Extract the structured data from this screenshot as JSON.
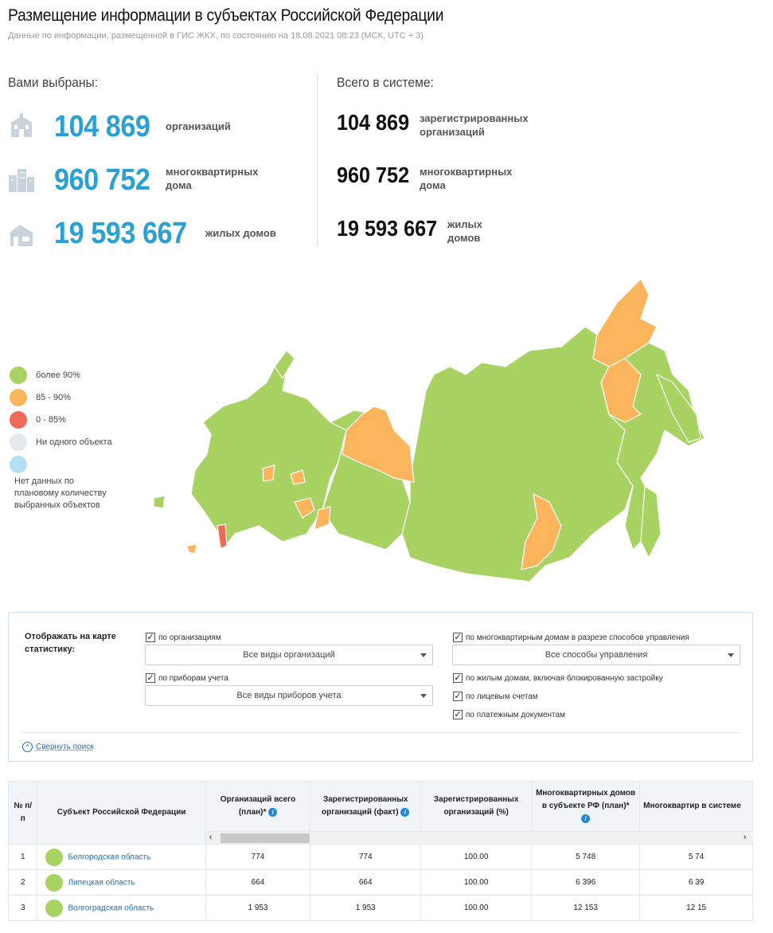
{
  "header": {
    "title": "Размещение информации в субъектах Российской Федерации",
    "subtitle": "Данные по информации, размещенной в ГИС ЖКХ, по состоянию на 18.08.2021 08:23 (МСК, UTC + 3)"
  },
  "selected": {
    "heading": "Вами выбраны:",
    "items": [
      {
        "icon": "organization-building-icon",
        "value": "104 869",
        "label": "организаций"
      },
      {
        "icon": "apartment-buildings-icon",
        "value": "960 752",
        "label": "многоквартирных дома"
      },
      {
        "icon": "house-icon",
        "value": "19 593 667",
        "label": "жилых домов"
      }
    ]
  },
  "total": {
    "heading": "Всего в системе:",
    "items": [
      {
        "value": "104 869",
        "label": "зарегистрированных организаций"
      },
      {
        "value": "960 752",
        "label": "многоквартирных дома"
      },
      {
        "value": "19 593 667",
        "label": "жилых домов"
      }
    ]
  },
  "legend": [
    {
      "label": "более 90%",
      "color": "#a8d262"
    },
    {
      "label": "85 - 90%",
      "color": "#fbb55c"
    },
    {
      "label": "0 - 85%",
      "color": "#f06a5a"
    },
    {
      "label": "Ни одного объекта",
      "color": "#e4e9ee"
    },
    {
      "label": "Нет данных по плановому количеству выбранных объектов",
      "color": "#b3e0f2"
    }
  ],
  "filters": {
    "title": "Отображать на карте статистику:",
    "by_orgs": "по организациям",
    "org_select": "Все виды организаций",
    "by_meters": "по приборам учета",
    "meter_select": "Все виды приборов учета",
    "by_mkd": "по многоквартирным домам в разрезе способов управления",
    "mgmt_select": "Все способы управления",
    "by_houses": "по жилым домам, включая блокированную застройку",
    "by_accounts": "по лицевым счетам",
    "by_payments": "по платежным документам",
    "collapse": "Свернуть поиск"
  },
  "table": {
    "headers": [
      "№ п/п",
      "Субъект Российской Федерации",
      "Организаций всего (план)*",
      "Зарегистрированных организаций (факт)",
      "Зарегистрированных организаций (%)",
      "Многоквартирных домов в субъекте РФ (план)*",
      "Многоквартир в системе"
    ],
    "rows": [
      {
        "n": "1",
        "region": "Белгородская область",
        "c1": "774",
        "c2": "774",
        "c3": "100.00",
        "c4": "5 748",
        "c5": "5 74"
      },
      {
        "n": "2",
        "region": "Липецкая область",
        "c1": "664",
        "c2": "664",
        "c3": "100.00",
        "c4": "6 396",
        "c5": "6 39"
      },
      {
        "n": "3",
        "region": "Волгоградская область",
        "c1": "1 953",
        "c2": "1 953",
        "c3": "100.00",
        "c4": "12 153",
        "c5": "12 15"
      }
    ]
  }
}
